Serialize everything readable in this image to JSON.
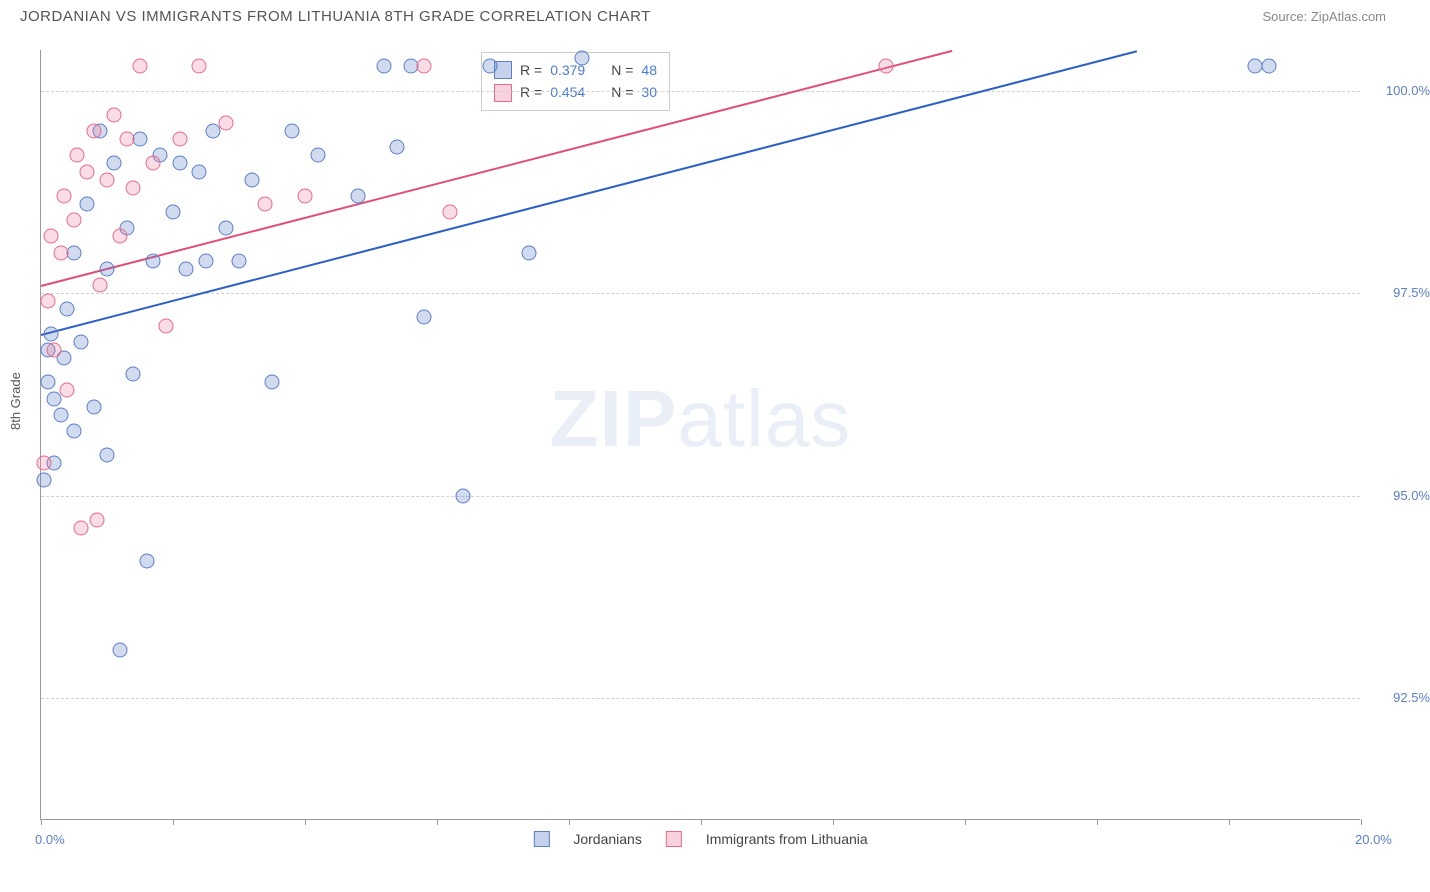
{
  "header": {
    "title": "JORDANIAN VS IMMIGRANTS FROM LITHUANIA 8TH GRADE CORRELATION CHART",
    "source": "Source: ZipAtlas.com"
  },
  "chart": {
    "type": "scatter",
    "ylabel": "8th Grade",
    "background_color": "#ffffff",
    "grid_color": "#d0d0d0",
    "axis_color": "#999999",
    "tick_color": "#5b7fc7",
    "title_fontsize": 15,
    "label_fontsize": 13,
    "marker_size": 15,
    "xlim": [
      0.0,
      20.0
    ],
    "ylim": [
      91.0,
      100.5
    ],
    "xticks": [
      {
        "pos": 0.0,
        "label": "0.0%"
      },
      {
        "pos": 2.0,
        "label": ""
      },
      {
        "pos": 4.0,
        "label": ""
      },
      {
        "pos": 6.0,
        "label": ""
      },
      {
        "pos": 8.0,
        "label": ""
      },
      {
        "pos": 10.0,
        "label": ""
      },
      {
        "pos": 12.0,
        "label": ""
      },
      {
        "pos": 14.0,
        "label": ""
      },
      {
        "pos": 16.0,
        "label": ""
      },
      {
        "pos": 18.0,
        "label": ""
      },
      {
        "pos": 20.0,
        "label": "20.0%"
      }
    ],
    "yticks": [
      {
        "pos": 92.5,
        "label": "92.5%"
      },
      {
        "pos": 95.0,
        "label": "95.0%"
      },
      {
        "pos": 97.5,
        "label": "97.5%"
      },
      {
        "pos": 100.0,
        "label": "100.0%"
      }
    ],
    "watermark": {
      "text_bold": "ZIP",
      "text_light": "atlas"
    },
    "series": [
      {
        "name": "Jordanians",
        "color": "#5b7fc7",
        "fill": "rgba(91,127,199,0.28)",
        "r": "0.379",
        "n": "48",
        "trend": {
          "x1": 0.0,
          "y1": 97.0,
          "x2": 16.6,
          "y2": 100.5,
          "color": "#2e5fc4"
        },
        "points": [
          [
            0.05,
            95.2
          ],
          [
            0.1,
            96.4
          ],
          [
            0.1,
            96.8
          ],
          [
            0.15,
            97.0
          ],
          [
            0.2,
            95.4
          ],
          [
            0.2,
            96.2
          ],
          [
            0.3,
            96.0
          ],
          [
            0.35,
            96.7
          ],
          [
            0.4,
            97.3
          ],
          [
            0.5,
            95.8
          ],
          [
            0.5,
            98.0
          ],
          [
            0.6,
            96.9
          ],
          [
            0.7,
            98.6
          ],
          [
            0.8,
            96.1
          ],
          [
            0.9,
            99.5
          ],
          [
            1.0,
            95.5
          ],
          [
            1.0,
            97.8
          ],
          [
            1.1,
            99.1
          ],
          [
            1.2,
            93.1
          ],
          [
            1.3,
            98.3
          ],
          [
            1.4,
            96.5
          ],
          [
            1.5,
            99.4
          ],
          [
            1.6,
            94.2
          ],
          [
            1.7,
            97.9
          ],
          [
            1.8,
            99.2
          ],
          [
            2.0,
            98.5
          ],
          [
            2.1,
            99.1
          ],
          [
            2.2,
            97.8
          ],
          [
            2.4,
            99.0
          ],
          [
            2.5,
            97.9
          ],
          [
            2.6,
            99.5
          ],
          [
            2.8,
            98.3
          ],
          [
            3.0,
            97.9
          ],
          [
            3.2,
            98.9
          ],
          [
            3.5,
            96.4
          ],
          [
            3.8,
            99.5
          ],
          [
            4.2,
            99.2
          ],
          [
            4.8,
            98.7
          ],
          [
            5.2,
            100.3
          ],
          [
            5.4,
            99.3
          ],
          [
            5.6,
            100.3
          ],
          [
            5.8,
            97.2
          ],
          [
            6.4,
            95.0
          ],
          [
            6.8,
            100.3
          ],
          [
            7.4,
            98.0
          ],
          [
            8.2,
            100.4
          ],
          [
            18.4,
            100.3
          ],
          [
            18.6,
            100.3
          ]
        ]
      },
      {
        "name": "Immigrants from Lithuania",
        "color": "#e96a8d",
        "fill": "rgba(235,130,160,0.28)",
        "r": "0.454",
        "n": "30",
        "trend": {
          "x1": 0.0,
          "y1": 97.6,
          "x2": 13.8,
          "y2": 100.5,
          "color": "#e14f77"
        },
        "points": [
          [
            0.05,
            95.4
          ],
          [
            0.1,
            97.4
          ],
          [
            0.15,
            98.2
          ],
          [
            0.2,
            96.8
          ],
          [
            0.3,
            98.0
          ],
          [
            0.35,
            98.7
          ],
          [
            0.4,
            96.3
          ],
          [
            0.5,
            98.4
          ],
          [
            0.55,
            99.2
          ],
          [
            0.6,
            94.6
          ],
          [
            0.7,
            99.0
          ],
          [
            0.8,
            99.5
          ],
          [
            0.85,
            94.7
          ],
          [
            0.9,
            97.6
          ],
          [
            1.0,
            98.9
          ],
          [
            1.1,
            99.7
          ],
          [
            1.2,
            98.2
          ],
          [
            1.3,
            99.4
          ],
          [
            1.4,
            98.8
          ],
          [
            1.5,
            100.3
          ],
          [
            1.7,
            99.1
          ],
          [
            1.9,
            97.1
          ],
          [
            2.1,
            99.4
          ],
          [
            2.4,
            100.3
          ],
          [
            2.8,
            99.6
          ],
          [
            3.4,
            98.6
          ],
          [
            4.0,
            98.7
          ],
          [
            5.8,
            100.3
          ],
          [
            6.2,
            98.5
          ],
          [
            12.8,
            100.3
          ]
        ]
      }
    ],
    "legend_box": {
      "r_label": "R =",
      "n_label": "N ="
    },
    "bottom_legend": [
      {
        "swatch": "blue",
        "label": "Jordanians"
      },
      {
        "swatch": "pink",
        "label": "Immigrants from Lithuania"
      }
    ]
  }
}
